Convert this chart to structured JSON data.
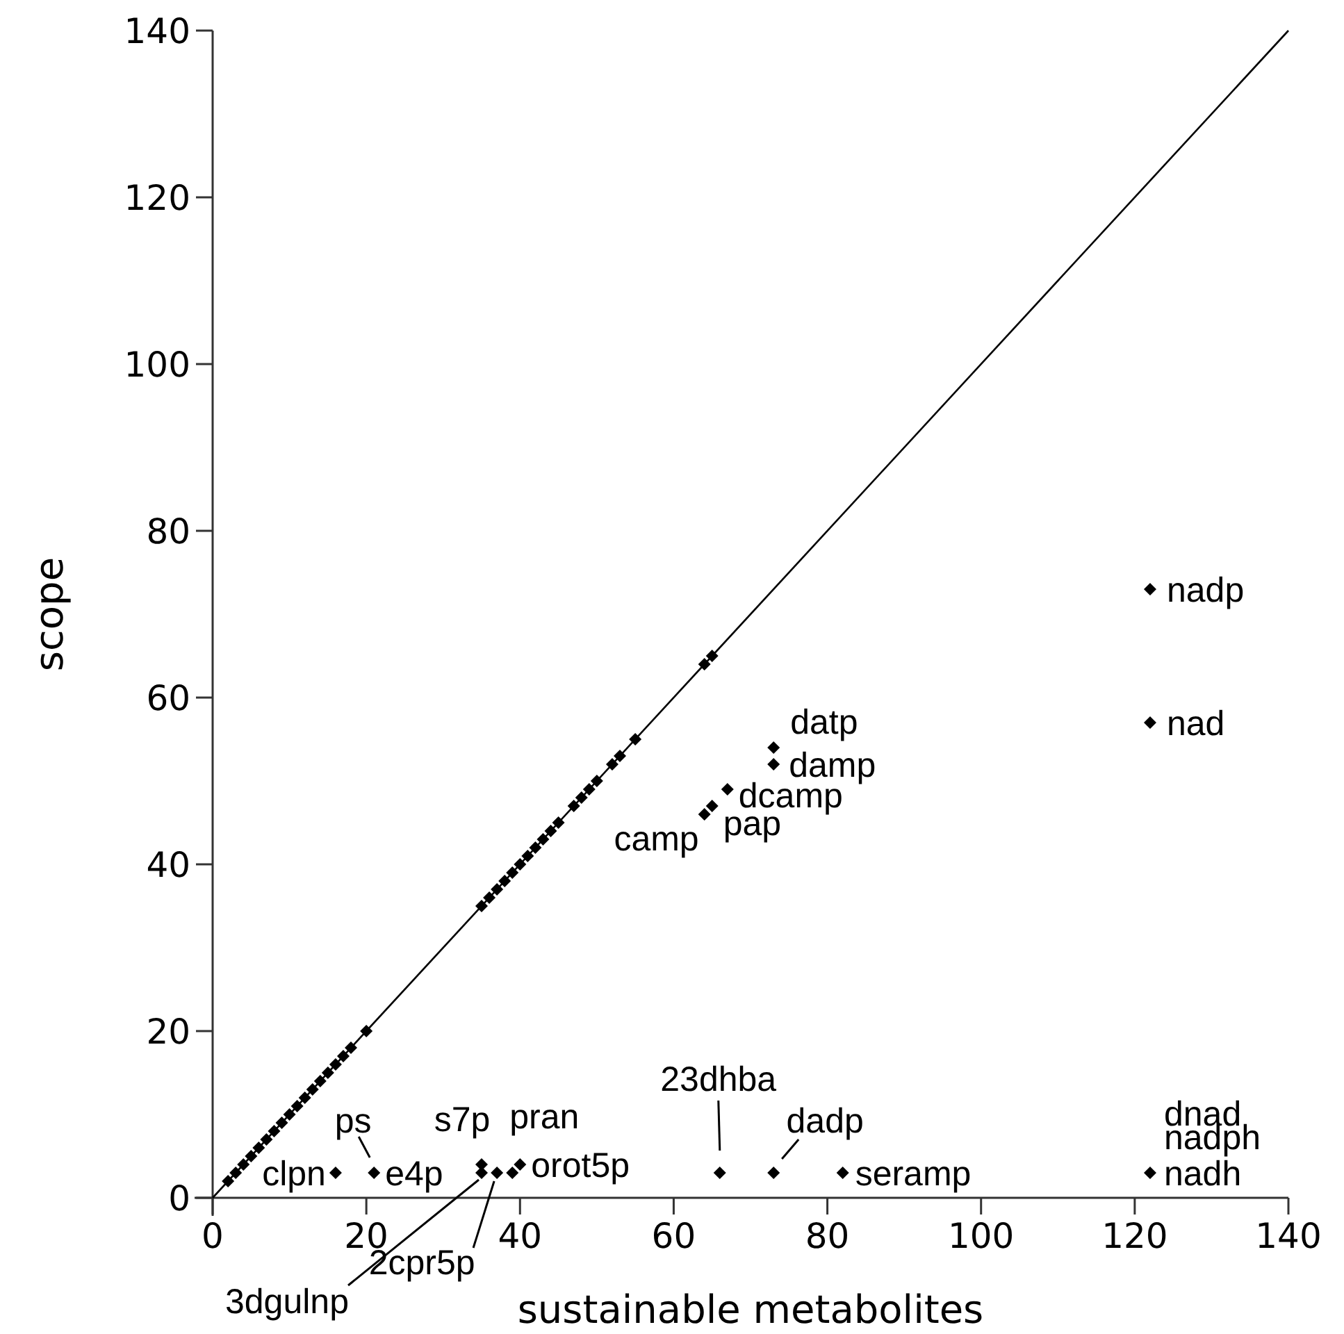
{
  "chart_data": {
    "type": "scatter",
    "xlabel": "sustainable metabolites",
    "ylabel": "scope",
    "xlim": [
      0,
      140
    ],
    "ylim": [
      0,
      140
    ],
    "xticks": [
      0,
      20,
      40,
      60,
      80,
      100,
      120,
      140
    ],
    "yticks": [
      0,
      20,
      40,
      60,
      80,
      100,
      120,
      140
    ],
    "grid": false,
    "series": [
      {
        "marker": "diamond",
        "color": "#000000",
        "x": [
          2,
          3,
          4,
          5,
          6,
          7,
          8,
          9,
          10,
          11,
          12,
          13,
          14,
          15,
          16,
          17,
          18,
          20,
          35,
          36,
          37,
          38,
          39,
          40,
          41,
          42,
          43,
          44,
          45,
          47,
          48,
          49,
          50,
          52,
          53,
          55,
          64,
          65,
          16,
          21,
          35,
          35,
          37,
          39,
          40,
          66,
          73,
          82,
          122,
          64,
          65,
          67,
          73,
          73,
          122,
          122
        ],
        "values": [
          2,
          3,
          4,
          5,
          6,
          7,
          8,
          9,
          10,
          11,
          12,
          13,
          14,
          15,
          16,
          17,
          18,
          20,
          35,
          36,
          37,
          38,
          39,
          40,
          41,
          42,
          43,
          44,
          45,
          47,
          48,
          49,
          50,
          52,
          53,
          55,
          64,
          65,
          3,
          3,
          4,
          3,
          3,
          3,
          4,
          3,
          3,
          3,
          3,
          46,
          47,
          49,
          52,
          54,
          73,
          57
        ]
      },
      {
        "type": "line",
        "marker": "none",
        "color": "#000000",
        "x": [
          0,
          140
        ],
        "values": [
          0,
          140
        ]
      }
    ],
    "annotations": [
      {
        "text": "clpn",
        "x": 16,
        "y": 3
      },
      {
        "text": "ps",
        "x": 21,
        "y": 3
      },
      {
        "text": "e4p",
        "x": 21,
        "y": 3
      },
      {
        "text": "s7p",
        "x": 35,
        "y": 4
      },
      {
        "text": "3dgulnp",
        "x": 35,
        "y": 3
      },
      {
        "text": "2cpr5p",
        "x": 37,
        "y": 3
      },
      {
        "text": "pran",
        "x": 39,
        "y": 3
      },
      {
        "text": "orot5p",
        "x": 40,
        "y": 4
      },
      {
        "text": "23dhba",
        "x": 66,
        "y": 3
      },
      {
        "text": "dadp",
        "x": 73,
        "y": 3
      },
      {
        "text": "seramp",
        "x": 82,
        "y": 3
      },
      {
        "text": "dnad",
        "x": 122,
        "y": 3
      },
      {
        "text": "nadph",
        "x": 122,
        "y": 3
      },
      {
        "text": "nadh",
        "x": 122,
        "y": 3
      },
      {
        "text": "camp",
        "x": 64,
        "y": 46
      },
      {
        "text": "pap",
        "x": 65,
        "y": 47
      },
      {
        "text": "dcamp",
        "x": 67,
        "y": 49
      },
      {
        "text": "damp",
        "x": 73,
        "y": 52
      },
      {
        "text": "datp",
        "x": 73,
        "y": 54
      },
      {
        "text": "nadp",
        "x": 122,
        "y": 73
      },
      {
        "text": "nad",
        "x": 122,
        "y": 57
      }
    ]
  }
}
